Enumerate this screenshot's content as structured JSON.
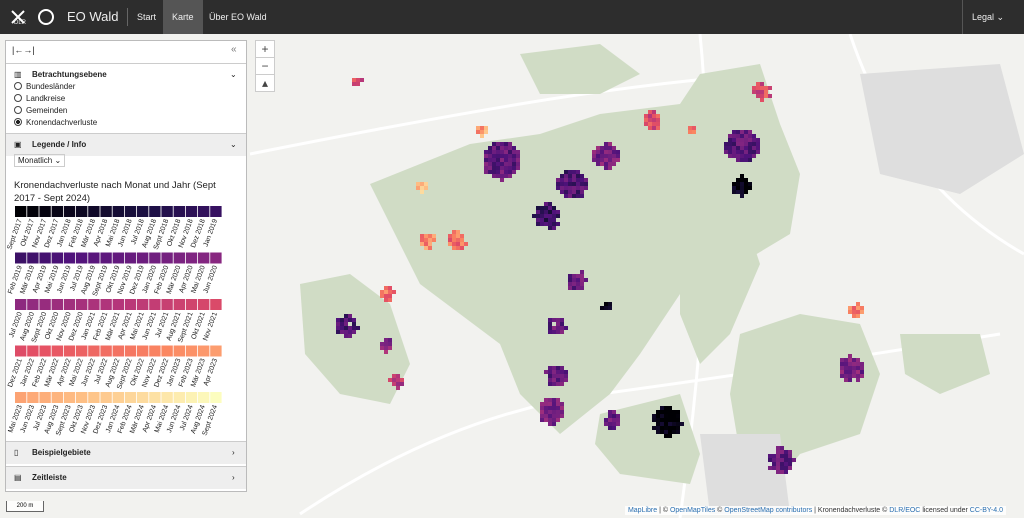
{
  "navbar": {
    "logo": "DLR",
    "brand": "EO Wald",
    "links": [
      "Start",
      "Karte",
      "Über EO Wald"
    ],
    "legal": "Legal"
  },
  "map_controls": {
    "zoom_in": "+",
    "zoom_out": "−"
  },
  "sidebar": {
    "view_level": {
      "title": "Betrachtungsebene",
      "options": [
        "Bundesländer",
        "Landkreise",
        "Gemeinden",
        "Kronendachverluste"
      ],
      "selected": 3
    },
    "legend": {
      "title": "Legende / Info",
      "mode": "Monatlich",
      "heading": "Kronendachverluste nach Monat und Jahr (Sept 2017 - Sept 2024)",
      "colormap": "magma",
      "months": [
        "Sept 2017",
        "Okt 2017",
        "Nov 2017",
        "Dez 2017",
        "Jan 2018",
        "Feb 2018",
        "Mär 2018",
        "Apr 2018",
        "Mai 2018",
        "Jun 2018",
        "Jul 2018",
        "Aug 2018",
        "Sept 2018",
        "Okt 2018",
        "Nov 2018",
        "Dez 2018",
        "Jan 2019",
        "Feb 2019",
        "Mär 2019",
        "Apr 2019",
        "Mai 2019",
        "Jun 2019",
        "Jul 2019",
        "Aug 2019",
        "Sept 2019",
        "Okt 2019",
        "Nov 2019",
        "Dez 2019",
        "Jan 2020",
        "Feb 2020",
        "Mär 2020",
        "Apr 2020",
        "Mai 2020",
        "Jun 2020",
        "Jul 2020",
        "Aug 2020",
        "Sept 2020",
        "Okt 2020",
        "Nov 2020",
        "Dez 2020",
        "Jan 2021",
        "Feb 2021",
        "Mär 2021",
        "Apr 2021",
        "Mai 2021",
        "Jun 2021",
        "Jul 2021",
        "Aug 2021",
        "Sept 2021",
        "Okt 2021",
        "Nov 2021",
        "Dez 2021",
        "Jan 2022",
        "Feb 2022",
        "Mär 2022",
        "Apr 2022",
        "Mai 2022",
        "Jun 2022",
        "Jul 2022",
        "Aug 2022",
        "Sept 2022",
        "Okt 2022",
        "Nov 2022",
        "Dez 2022",
        "Jan 2023",
        "Feb 2023",
        "Mär 2023",
        "Apr 2023",
        "Mai 2023",
        "Jun 2023",
        "Jul 2023",
        "Aug 2023",
        "Sept 2023",
        "Okt 2023",
        "Nov 2023",
        "Dez 2023",
        "Jan 2024",
        "Feb 2024",
        "Mär 2024",
        "Apr 2024",
        "Mai 2024",
        "Jun 2024",
        "Jul 2024",
        "Aug 2024",
        "Sept 2024"
      ]
    },
    "examples": "Beispielgebiete",
    "timeline": "Zeitleiste"
  },
  "scale": "200 m",
  "attribution": [
    "MapLibre",
    " | © ",
    "OpenMapTiles",
    " © ",
    "OpenStreetMap contributors",
    " | Kronendachverluste © ",
    "DLR/EOC",
    " licensed under ",
    "CC-BY-4.0"
  ]
}
